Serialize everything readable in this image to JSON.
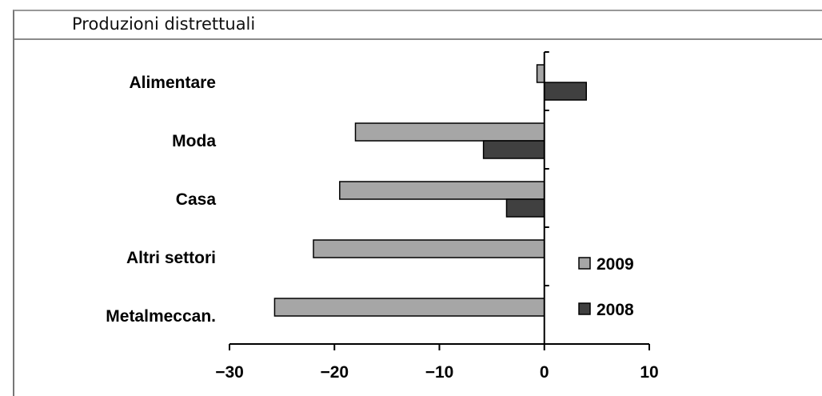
{
  "chart_data": {
    "type": "bar",
    "orientation": "horizontal",
    "title": "Produzioni distrettuali",
    "categories": [
      "Alimentare",
      "Moda",
      "Casa",
      "Altri settori",
      "Metalmeccan."
    ],
    "series": [
      {
        "name": "2009",
        "values": [
          -0.7,
          -18.0,
          -19.5,
          -22.0,
          -25.7
        ],
        "color": "#a6a6a6"
      },
      {
        "name": "2008",
        "values": [
          4.0,
          -5.8,
          -3.6,
          null,
          null
        ],
        "color": "#404040"
      }
    ],
    "xlim": [
      -30,
      10
    ],
    "xticks": [
      "−30",
      "−20",
      "−10",
      "0",
      "10"
    ],
    "grid": false,
    "legend_position": "bottom-right"
  }
}
